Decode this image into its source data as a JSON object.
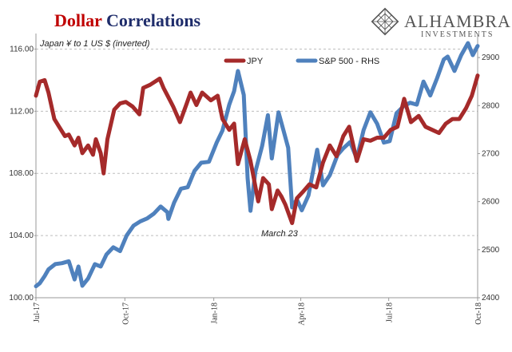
{
  "header": {
    "title_part1": "Dollar",
    "title_part2": " Correlations",
    "title_color1": "#c00000",
    "title_color2": "#1f2d6b"
  },
  "logo": {
    "name": "ALHAMBRA",
    "sub": "INVESTMENTS",
    "icon": "diamond-lattice-icon"
  },
  "chart_data": {
    "type": "line",
    "subtitle": "Japan ¥ to 1 US $ (inverted)",
    "x_range": [
      "2017-07-01",
      "2018-10-01"
    ],
    "x_tick_labels": [
      "Jul-17",
      "Oct-17",
      "Jan-18",
      "Apr-18",
      "Jul-18",
      "Oct-18"
    ],
    "y_left": {
      "ticks": [
        "100.00",
        "104.00",
        "108.00",
        "112.00",
        "116.00"
      ],
      "range": [
        100,
        117
      ]
    },
    "y_right": {
      "ticks": [
        "2400",
        "2500",
        "2600",
        "2700",
        "2800",
        "2900"
      ],
      "range": [
        2400,
        2950
      ]
    },
    "grid": true,
    "legend_position": "top-center",
    "annotation": "March 23",
    "series": [
      {
        "name": "JPY",
        "color": "#a52a2a",
        "axis": "left",
        "points": [
          [
            "2017-07-01",
            113.0
          ],
          [
            "2017-07-05",
            113.9
          ],
          [
            "2017-07-10",
            114.0
          ],
          [
            "2017-07-14",
            113.2
          ],
          [
            "2017-07-20",
            111.5
          ],
          [
            "2017-07-25",
            111.0
          ],
          [
            "2017-07-31",
            110.4
          ],
          [
            "2017-08-04",
            110.5
          ],
          [
            "2017-08-10",
            109.8
          ],
          [
            "2017-08-14",
            110.3
          ],
          [
            "2017-08-18",
            109.3
          ],
          [
            "2017-08-24",
            109.8
          ],
          [
            "2017-08-29",
            109.2
          ],
          [
            "2017-09-01",
            110.2
          ],
          [
            "2017-09-06",
            109.3
          ],
          [
            "2017-09-09",
            108.0
          ],
          [
            "2017-09-13",
            110.2
          ],
          [
            "2017-09-20",
            112.1
          ],
          [
            "2017-09-26",
            112.5
          ],
          [
            "2017-10-02",
            112.6
          ],
          [
            "2017-10-09",
            112.3
          ],
          [
            "2017-10-16",
            111.8
          ],
          [
            "2017-10-20",
            113.5
          ],
          [
            "2017-10-27",
            113.7
          ],
          [
            "2017-11-06",
            114.1
          ],
          [
            "2017-11-10",
            113.5
          ],
          [
            "2017-11-15",
            112.9
          ],
          [
            "2017-11-20",
            112.3
          ],
          [
            "2017-11-27",
            111.3
          ],
          [
            "2017-12-04",
            112.5
          ],
          [
            "2017-12-08",
            113.2
          ],
          [
            "2017-12-14",
            112.4
          ],
          [
            "2017-12-20",
            113.2
          ],
          [
            "2017-12-29",
            112.7
          ],
          [
            "2018-01-05",
            113.0
          ],
          [
            "2018-01-10",
            111.5
          ],
          [
            "2018-01-17",
            110.8
          ],
          [
            "2018-01-22",
            111.2
          ],
          [
            "2018-01-26",
            108.6
          ],
          [
            "2018-02-02",
            110.2
          ],
          [
            "2018-02-08",
            108.8
          ],
          [
            "2018-02-16",
            106.2
          ],
          [
            "2018-02-21",
            107.7
          ],
          [
            "2018-02-27",
            107.3
          ],
          [
            "2018-03-02",
            105.7
          ],
          [
            "2018-03-08",
            106.9
          ],
          [
            "2018-03-12",
            106.5
          ],
          [
            "2018-03-16",
            106.0
          ],
          [
            "2018-03-23",
            104.8
          ],
          [
            "2018-03-28",
            106.4
          ],
          [
            "2018-04-03",
            106.8
          ],
          [
            "2018-04-10",
            107.3
          ],
          [
            "2018-04-17",
            107.1
          ],
          [
            "2018-04-24",
            108.7
          ],
          [
            "2018-05-01",
            109.8
          ],
          [
            "2018-05-08",
            109.1
          ],
          [
            "2018-05-15",
            110.4
          ],
          [
            "2018-05-21",
            111.0
          ],
          [
            "2018-05-29",
            108.8
          ],
          [
            "2018-06-05",
            110.2
          ],
          [
            "2018-06-12",
            110.1
          ],
          [
            "2018-06-19",
            110.3
          ],
          [
            "2018-06-26",
            110.3
          ],
          [
            "2018-07-03",
            110.8
          ],
          [
            "2018-07-10",
            111.0
          ],
          [
            "2018-07-17",
            112.8
          ],
          [
            "2018-07-24",
            111.3
          ],
          [
            "2018-08-01",
            111.7
          ],
          [
            "2018-08-08",
            111.0
          ],
          [
            "2018-08-15",
            110.8
          ],
          [
            "2018-08-22",
            110.6
          ],
          [
            "2018-08-29",
            111.2
          ],
          [
            "2018-09-05",
            111.5
          ],
          [
            "2018-09-12",
            111.5
          ],
          [
            "2018-09-19",
            112.2
          ],
          [
            "2018-09-25",
            113.0
          ],
          [
            "2018-10-01",
            114.3
          ]
        ]
      },
      {
        "name": "S&P 500 - RHS",
        "color": "#4f81bd",
        "axis": "right",
        "points": [
          [
            "2017-07-01",
            2424
          ],
          [
            "2017-07-05",
            2430
          ],
          [
            "2017-07-10",
            2445
          ],
          [
            "2017-07-14",
            2459
          ],
          [
            "2017-07-21",
            2470
          ],
          [
            "2017-07-28",
            2472
          ],
          [
            "2017-08-04",
            2476
          ],
          [
            "2017-08-10",
            2438
          ],
          [
            "2017-08-14",
            2465
          ],
          [
            "2017-08-18",
            2425
          ],
          [
            "2017-08-24",
            2440
          ],
          [
            "2017-08-31",
            2470
          ],
          [
            "2017-09-06",
            2465
          ],
          [
            "2017-09-12",
            2490
          ],
          [
            "2017-09-19",
            2505
          ],
          [
            "2017-09-26",
            2497
          ],
          [
            "2017-10-03",
            2530
          ],
          [
            "2017-10-10",
            2550
          ],
          [
            "2017-10-17",
            2559
          ],
          [
            "2017-10-24",
            2565
          ],
          [
            "2017-10-31",
            2575
          ],
          [
            "2017-11-07",
            2590
          ],
          [
            "2017-11-14",
            2578
          ],
          [
            "2017-11-15",
            2564
          ],
          [
            "2017-11-21",
            2598
          ],
          [
            "2017-11-28",
            2627
          ],
          [
            "2017-12-05",
            2630
          ],
          [
            "2017-12-12",
            2664
          ],
          [
            "2017-12-19",
            2681
          ],
          [
            "2017-12-27",
            2683
          ],
          [
            "2018-01-04",
            2723
          ],
          [
            "2018-01-10",
            2748
          ],
          [
            "2018-01-17",
            2802
          ],
          [
            "2018-01-22",
            2830
          ],
          [
            "2018-01-26",
            2872
          ],
          [
            "2018-02-01",
            2822
          ],
          [
            "2018-02-05",
            2649
          ],
          [
            "2018-02-08",
            2581
          ],
          [
            "2018-02-13",
            2662
          ],
          [
            "2018-02-20",
            2716
          ],
          [
            "2018-02-26",
            2780
          ],
          [
            "2018-03-02",
            2690
          ],
          [
            "2018-03-09",
            2786
          ],
          [
            "2018-03-14",
            2749
          ],
          [
            "2018-03-19",
            2712
          ],
          [
            "2018-03-23",
            2588
          ],
          [
            "2018-03-28",
            2605
          ],
          [
            "2018-04-02",
            2582
          ],
          [
            "2018-04-09",
            2613
          ],
          [
            "2018-04-13",
            2656
          ],
          [
            "2018-04-18",
            2708
          ],
          [
            "2018-04-24",
            2634
          ],
          [
            "2018-05-01",
            2655
          ],
          [
            "2018-05-09",
            2697
          ],
          [
            "2018-05-15",
            2711
          ],
          [
            "2018-05-22",
            2724
          ],
          [
            "2018-05-29",
            2690
          ],
          [
            "2018-06-05",
            2749
          ],
          [
            "2018-06-12",
            2786
          ],
          [
            "2018-06-19",
            2762
          ],
          [
            "2018-06-26",
            2723
          ],
          [
            "2018-07-02",
            2726
          ],
          [
            "2018-07-09",
            2784
          ],
          [
            "2018-07-16",
            2798
          ],
          [
            "2018-07-23",
            2806
          ],
          [
            "2018-07-30",
            2802
          ],
          [
            "2018-08-06",
            2850
          ],
          [
            "2018-08-13",
            2821
          ],
          [
            "2018-08-20",
            2857
          ],
          [
            "2018-08-27",
            2896
          ],
          [
            "2018-08-31",
            2902
          ],
          [
            "2018-09-07",
            2872
          ],
          [
            "2018-09-14",
            2905
          ],
          [
            "2018-09-21",
            2930
          ],
          [
            "2018-09-26",
            2905
          ],
          [
            "2018-10-01",
            2924
          ]
        ]
      }
    ]
  }
}
